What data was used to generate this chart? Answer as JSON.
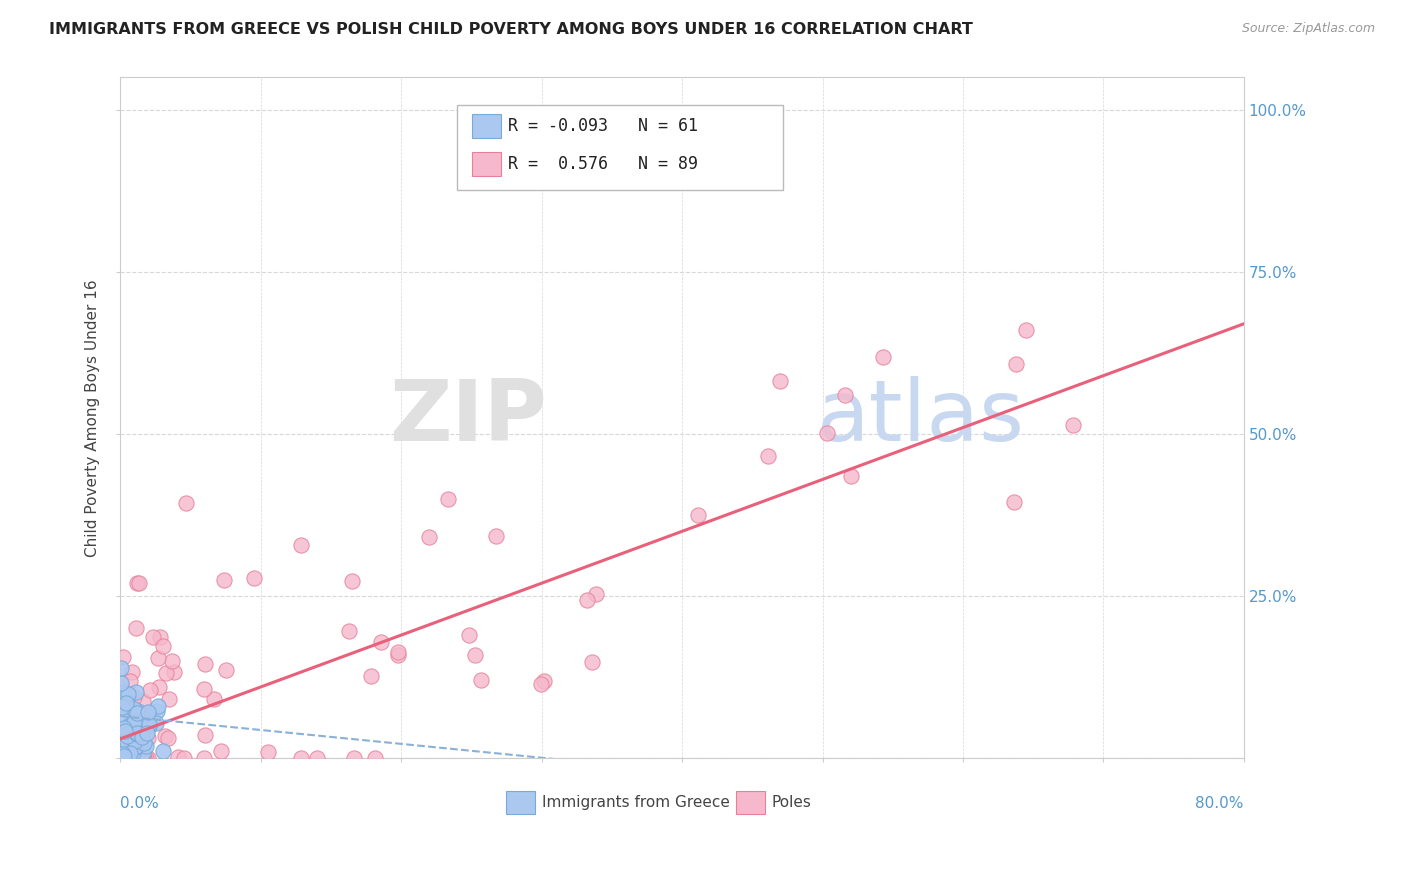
{
  "title": "IMMIGRANTS FROM GREECE VS POLISH CHILD POVERTY AMONG BOYS UNDER 16 CORRELATION CHART",
  "source": "Source: ZipAtlas.com",
  "ylabel": "Child Poverty Among Boys Under 16",
  "legend_blue_label": "Immigrants from Greece",
  "legend_pink_label": "Poles",
  "R_blue": -0.093,
  "N_blue": 61,
  "R_pink": 0.576,
  "N_pink": 89,
  "blue_marker_color": "#aac8f0",
  "blue_edge_color": "#7aaad8",
  "pink_marker_color": "#f5b8cc",
  "pink_edge_color": "#e8809a",
  "blue_line_color": "#8ab0d8",
  "pink_line_color": "#e8607a",
  "grid_color": "#d8d8d8",
  "right_tick_color": "#5599cc",
  "watermark_zip_color": "#e0e0e0",
  "watermark_atlas_color": "#c8d8f0",
  "xlim": [
    0.0,
    0.8
  ],
  "ylim": [
    0.0,
    1.05
  ],
  "pink_line_x0": 0.0,
  "pink_line_y0": 0.03,
  "pink_line_x1": 0.8,
  "pink_line_y1": 0.67,
  "blue_line_x0": 0.0,
  "blue_line_y0": 0.065,
  "blue_line_x1": 0.35,
  "blue_line_y1": -0.01,
  "blue_seed": 42,
  "pink_seed": 7
}
